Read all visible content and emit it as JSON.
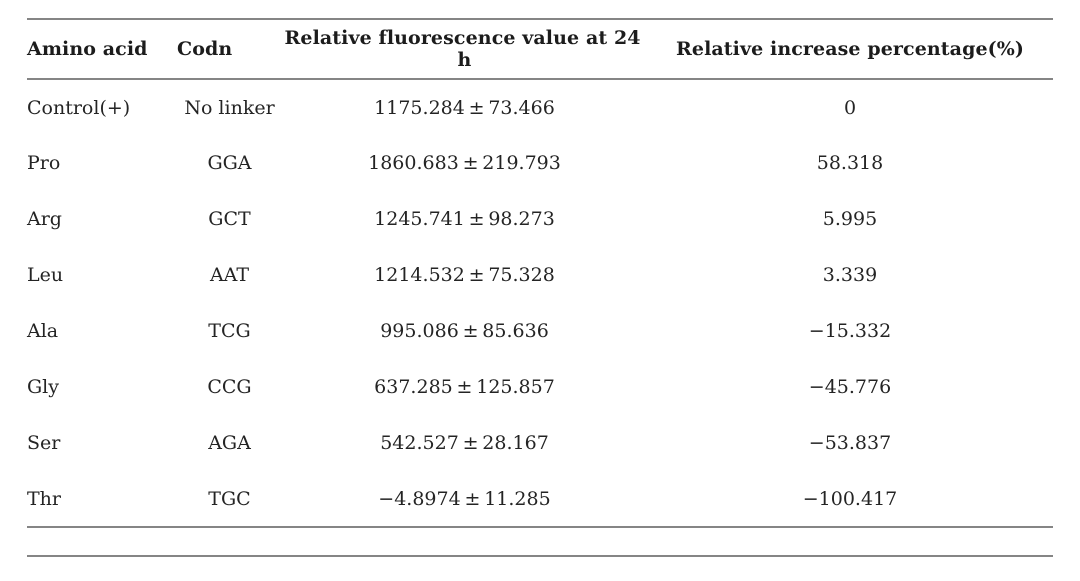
{
  "table": {
    "columns": [
      {
        "label": "Amino acid"
      },
      {
        "label": "Codn"
      },
      {
        "label": "Relative fluorescence value at 24 h"
      },
      {
        "label": "Relative increase percentage(%)"
      }
    ],
    "rows": [
      {
        "amino_acid": "Control(+)",
        "codon": "No linker",
        "fluorescence": "1175.284 ± 73.466",
        "increase": "0"
      },
      {
        "amino_acid": "Pro",
        "codon": "GGA",
        "fluorescence": "1860.683 ± 219.793",
        "increase": "58.318"
      },
      {
        "amino_acid": "Arg",
        "codon": "GCT",
        "fluorescence": "1245.741 ± 98.273",
        "increase": "5.995"
      },
      {
        "amino_acid": "Leu",
        "codon": "AAT",
        "fluorescence": "1214.532 ± 75.328",
        "increase": "3.339"
      },
      {
        "amino_acid": "Ala",
        "codon": "TCG",
        "fluorescence": "995.086 ± 85.636",
        "increase": "−15.332"
      },
      {
        "amino_acid": "Gly",
        "codon": "CCG",
        "fluorescence": "637.285 ± 125.857",
        "increase": "−45.776"
      },
      {
        "amino_acid": "Ser",
        "codon": "AGA",
        "fluorescence": "542.527 ± 28.167",
        "increase": "−53.837"
      },
      {
        "amino_acid": "Thr",
        "codon": "TGC",
        "fluorescence": "−4.8974 ± 11.285",
        "increase": "−100.417"
      }
    ]
  },
  "colors": {
    "rule": "#858585",
    "text": "#212121",
    "background": "#ffffff"
  }
}
